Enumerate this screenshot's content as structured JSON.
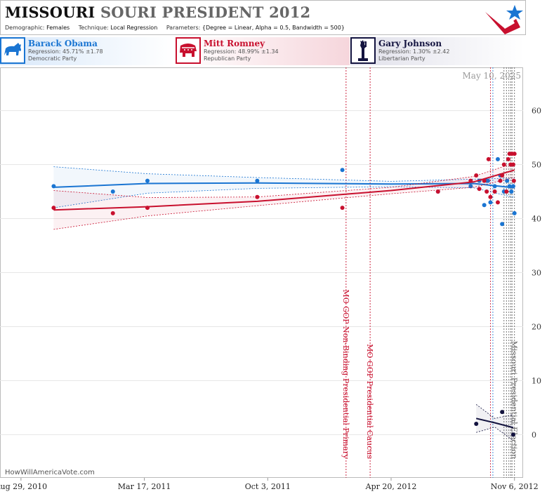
{
  "header": {
    "title_part1": "MISSOURI",
    "title_part2": "SOURI PRESIDENT 2012",
    "demographic_key": "Demographic:",
    "demographic_val": "Females",
    "technique_key": "Technique:",
    "technique_val": "Local Regression",
    "parameters_key": "Parameters:",
    "parameters_val": "{Degree = Linear, Alpha = 0.5, Bandwidth = 500}"
  },
  "candidates": [
    {
      "name": "Barack Obama",
      "regression": "Regression: 45.71% ±1.78",
      "party": "Democratic Party",
      "color": "#1a75d2",
      "icon": "donkey-icon"
    },
    {
      "name": "Mitt Romney",
      "regression": "Regression: 48.99% ±1.34",
      "party": "Republican Party",
      "color": "#c8102e",
      "icon": "elephant-icon"
    },
    {
      "name": "Gary Johnson",
      "regression": "Regression: 1.30% ±2.42",
      "party": "Libertarian Party",
      "color": "#13133f",
      "icon": "statue-of-liberty-icon"
    }
  ],
  "date_stamp": "May 10, 2025",
  "credit": "HowWillAmericaVote.com",
  "chart_data": {
    "type": "scatter",
    "x_tick_labels": [
      "Aug 29, 2010",
      "Mar 17, 2011",
      "Oct 3, 2011",
      "Apr 20, 2012",
      "Nov 6, 2012"
    ],
    "x_tick_dates": [
      "2010-08-29",
      "2011-03-17",
      "2011-10-03",
      "2012-04-20",
      "2012-11-06"
    ],
    "xlim": [
      "2010-07-26",
      "2012-11-20"
    ],
    "ylim": [
      -8,
      68
    ],
    "y_ticks": [
      0,
      10,
      20,
      30,
      40,
      50,
      60
    ],
    "grid": true,
    "annotations": [
      {
        "date": "2012-02-07",
        "label": "MO GOP Non-Binding Presidential Primary",
        "color": "#c8102e"
      },
      {
        "date": "2012-03-17",
        "label": "MO GOP Presidential Caucus",
        "color": "#c8102e"
      },
      {
        "date": "2012-11-06",
        "label": "Missouri Presidential Election",
        "color": "#666666"
      }
    ],
    "poll_lines": [
      {
        "date": "2012-09-28",
        "color": "#c8102e"
      },
      {
        "date": "2012-10-02",
        "color": "#1a75d2"
      },
      {
        "date": "2012-10-20",
        "color": "#555555"
      },
      {
        "date": "2012-10-24",
        "color": "#555555"
      },
      {
        "date": "2012-10-28",
        "color": "#555555"
      },
      {
        "date": "2012-10-31",
        "color": "#555555"
      },
      {
        "date": "2012-11-02",
        "color": "#555555"
      }
    ],
    "series": [
      {
        "name": "Barack Obama",
        "color": "#1a75d2",
        "points": [
          [
            "2010-10-21",
            46
          ],
          [
            "2011-01-25",
            45
          ],
          [
            "2011-03-22",
            47
          ],
          [
            "2011-09-16",
            47
          ],
          [
            "2012-02-01",
            49
          ],
          [
            "2012-07-05",
            45
          ],
          [
            "2012-08-27",
            46
          ],
          [
            "2012-09-10",
            47
          ],
          [
            "2012-09-18",
            42.5
          ],
          [
            "2012-09-22",
            47
          ],
          [
            "2012-09-24",
            47
          ],
          [
            "2012-09-28",
            43
          ],
          [
            "2012-10-05",
            46
          ],
          [
            "2012-10-10",
            51
          ],
          [
            "2012-10-14",
            48
          ],
          [
            "2012-10-17",
            39
          ],
          [
            "2012-10-20",
            45
          ],
          [
            "2012-10-25",
            47
          ],
          [
            "2012-10-29",
            46
          ],
          [
            "2012-11-01",
            45
          ],
          [
            "2012-11-04",
            46
          ],
          [
            "2012-11-06",
            41
          ]
        ],
        "fit": [
          [
            "2010-10-21",
            45.8
          ],
          [
            "2011-03-22",
            46.5
          ],
          [
            "2011-09-16",
            46.6
          ],
          [
            "2012-04-20",
            46.4
          ],
          [
            "2012-09-01",
            46.5
          ],
          [
            "2012-11-06",
            45.71
          ]
        ],
        "band_upper": [
          [
            "2010-10-21",
            49.6
          ],
          [
            "2011-03-22",
            48.3
          ],
          [
            "2011-09-16",
            47.6
          ],
          [
            "2012-04-20",
            46.9
          ],
          [
            "2012-09-01",
            47.3
          ],
          [
            "2012-11-06",
            47.5
          ]
        ],
        "band_lower": [
          [
            "2010-10-21",
            42.0
          ],
          [
            "2011-03-22",
            44.7
          ],
          [
            "2011-09-16",
            45.6
          ],
          [
            "2012-04-20",
            45.9
          ],
          [
            "2012-09-01",
            45.7
          ],
          [
            "2012-11-06",
            43.9
          ]
        ]
      },
      {
        "name": "Mitt Romney",
        "color": "#c8102e",
        "points": [
          [
            "2010-10-21",
            42
          ],
          [
            "2011-01-25",
            41
          ],
          [
            "2011-03-22",
            42
          ],
          [
            "2011-09-16",
            44
          ],
          [
            "2012-02-01",
            42
          ],
          [
            "2012-07-05",
            45
          ],
          [
            "2012-08-27",
            47
          ],
          [
            "2012-09-05",
            48
          ],
          [
            "2012-09-10",
            45.5
          ],
          [
            "2012-09-18",
            47
          ],
          [
            "2012-09-22",
            45
          ],
          [
            "2012-09-25",
            51
          ],
          [
            "2012-09-28",
            44
          ],
          [
            "2012-10-05",
            45
          ],
          [
            "2012-10-10",
            43
          ],
          [
            "2012-10-14",
            47
          ],
          [
            "2012-10-17",
            48
          ],
          [
            "2012-10-20",
            50
          ],
          [
            "2012-10-24",
            45
          ],
          [
            "2012-10-27",
            51
          ],
          [
            "2012-10-29",
            52
          ],
          [
            "2012-10-31",
            50
          ],
          [
            "2012-11-02",
            52
          ],
          [
            "2012-11-04",
            50
          ],
          [
            "2012-11-05",
            47
          ],
          [
            "2012-11-06",
            52
          ]
        ],
        "fit": [
          [
            "2010-10-21",
            41.6
          ],
          [
            "2011-03-22",
            42.2
          ],
          [
            "2011-09-16",
            43.2
          ],
          [
            "2012-04-20",
            45.2
          ],
          [
            "2012-09-01",
            46.8
          ],
          [
            "2012-11-06",
            48.99
          ]
        ],
        "band_upper": [
          [
            "2010-10-21",
            45.2
          ],
          [
            "2011-03-22",
            43.9
          ],
          [
            "2011-09-16",
            44.0
          ],
          [
            "2012-04-20",
            45.8
          ],
          [
            "2012-09-01",
            47.8
          ],
          [
            "2012-11-06",
            50.3
          ]
        ],
        "band_lower": [
          [
            "2010-10-21",
            38.0
          ],
          [
            "2011-03-22",
            40.5
          ],
          [
            "2011-09-16",
            42.4
          ],
          [
            "2012-04-20",
            44.6
          ],
          [
            "2012-09-01",
            45.8
          ],
          [
            "2012-11-06",
            47.6
          ]
        ]
      },
      {
        "name": "Gary Johnson",
        "color": "#13133f",
        "points": [
          [
            "2012-09-05",
            2
          ],
          [
            "2012-10-17",
            4.2
          ],
          [
            "2012-11-04",
            0
          ]
        ],
        "fit": [
          [
            "2012-09-05",
            3.0
          ],
          [
            "2012-10-05",
            2.2
          ],
          [
            "2012-11-04",
            1.3
          ]
        ],
        "band_upper": [
          [
            "2012-09-05",
            5.6
          ],
          [
            "2012-10-05",
            3.0
          ],
          [
            "2012-11-04",
            3.7
          ]
        ],
        "band_lower": [
          [
            "2012-09-05",
            0.4
          ],
          [
            "2012-10-05",
            1.4
          ],
          [
            "2012-11-04",
            -1.1
          ]
        ]
      }
    ]
  }
}
